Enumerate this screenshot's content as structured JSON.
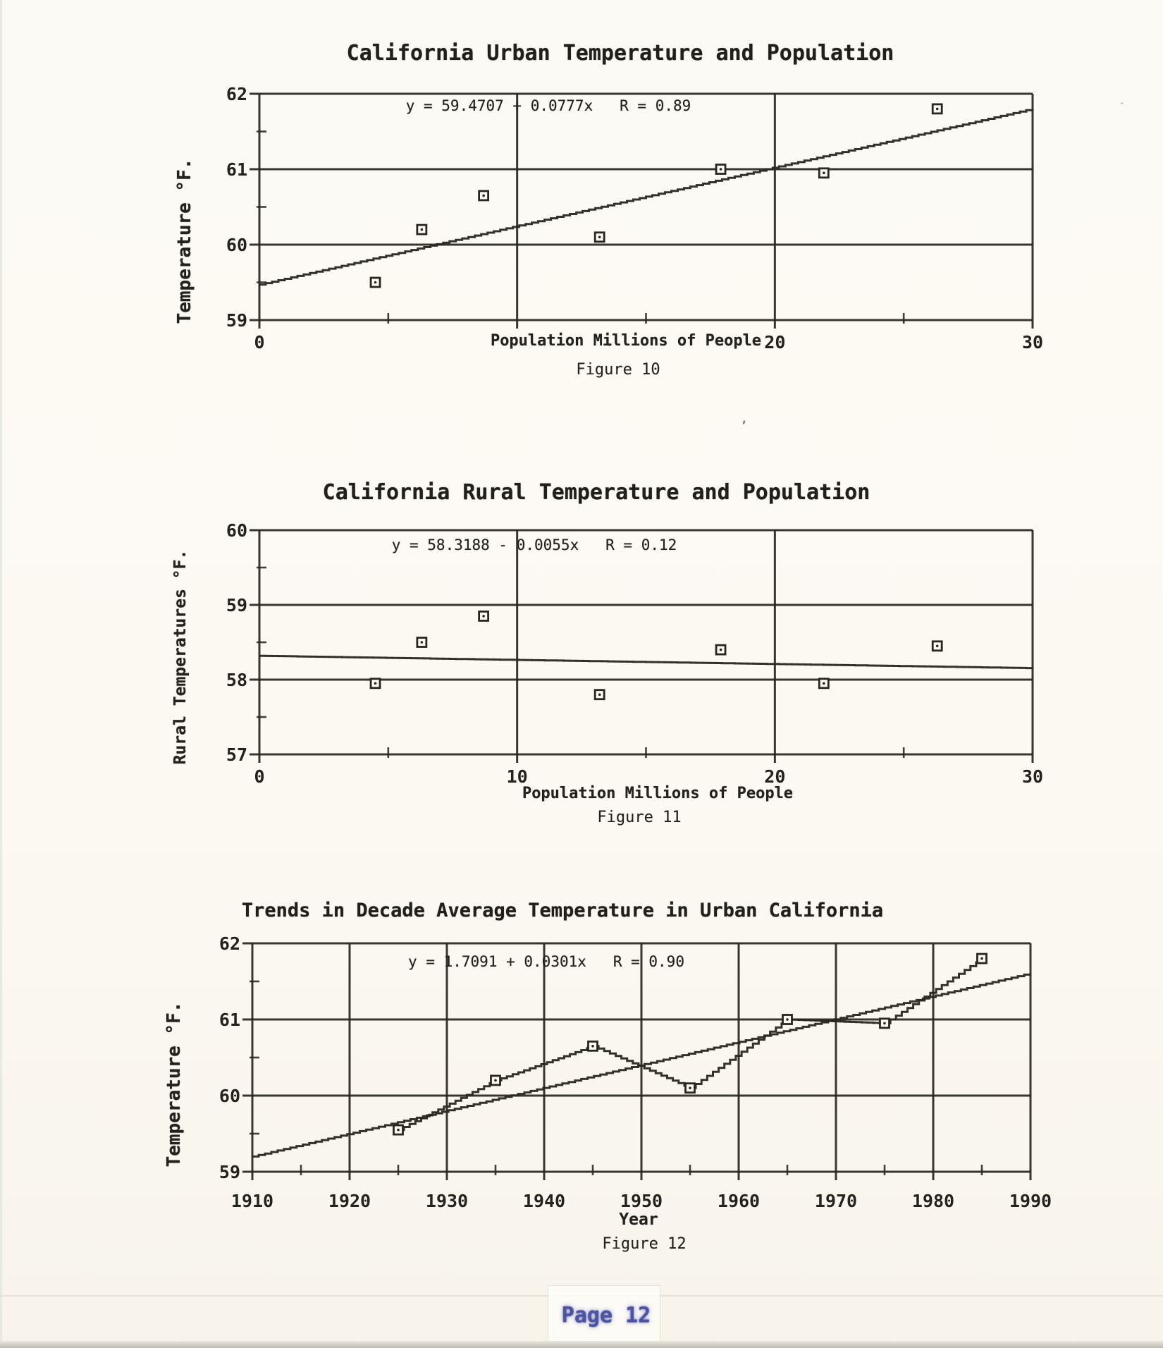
{
  "footer": {
    "page_label": "Page 12"
  },
  "chart_data": [
    {
      "type": "scatter",
      "title": "California Urban Temperature and Population",
      "equation": "y = 59.4707 + 0.0777x   R = 0.89",
      "fit": {
        "intercept": 59.4707,
        "slope": 0.0777,
        "r": 0.89
      },
      "xlabel": "Population Millions of People",
      "ylabel": "Temperature °F.",
      "figure_caption": "Figure 10",
      "xlim": [
        0,
        30
      ],
      "ylim": [
        59,
        62
      ],
      "grid": true,
      "legend": null,
      "x_gridlines": [
        0,
        10,
        20,
        30
      ],
      "y_gridlines": [
        59,
        60,
        61,
        62
      ],
      "x_minor_ticks": [
        5,
        15,
        25
      ],
      "y_minor_ticks": [
        59.5,
        60.5,
        61.5
      ],
      "x_ticks": [
        {
          "v": 0,
          "label": "0"
        },
        {
          "v": 20,
          "label": "20"
        },
        {
          "v": 30,
          "label": "30"
        }
      ],
      "y_ticks": [
        {
          "v": 62,
          "label": "62"
        },
        {
          "v": 61,
          "label": "61"
        },
        {
          "v": 60,
          "label": "60"
        },
        {
          "v": 59,
          "label": "59"
        }
      ],
      "points": [
        [
          4.5,
          59.5
        ],
        [
          6.3,
          60.2
        ],
        [
          8.7,
          60.65
        ],
        [
          13.2,
          60.1
        ],
        [
          17.9,
          61.0
        ],
        [
          21.9,
          60.95
        ],
        [
          26.3,
          61.8
        ]
      ],
      "connect": false
    },
    {
      "type": "scatter",
      "title": "California Rural Temperature and Population",
      "equation": "y = 58.3188 - 0.0055x   R = 0.12",
      "fit": {
        "intercept": 58.3188,
        "slope": -0.0055,
        "r": 0.12
      },
      "xlabel": "Population Millions of People",
      "ylabel": "Rural Temperatures °F.",
      "figure_caption": "Figure 11",
      "xlim": [
        0,
        30
      ],
      "ylim": [
        57,
        60
      ],
      "grid": true,
      "legend": null,
      "x_gridlines": [
        0,
        10,
        20,
        30
      ],
      "y_gridlines": [
        57,
        58,
        59,
        60
      ],
      "x_minor_ticks": [
        5,
        15,
        25
      ],
      "y_minor_ticks": [
        57.5,
        58.5,
        59.5
      ],
      "x_ticks": [
        {
          "v": 0,
          "label": "0"
        },
        {
          "v": 10,
          "label": "10"
        },
        {
          "v": 20,
          "label": "20"
        },
        {
          "v": 30,
          "label": "30"
        }
      ],
      "y_ticks": [
        {
          "v": 60,
          "label": "60"
        },
        {
          "v": 59,
          "label": "59"
        },
        {
          "v": 58,
          "label": "58"
        },
        {
          "v": 57,
          "label": "57"
        }
      ],
      "points": [
        [
          4.5,
          57.95
        ],
        [
          6.3,
          58.5
        ],
        [
          8.7,
          58.85
        ],
        [
          13.2,
          57.8
        ],
        [
          17.9,
          58.4
        ],
        [
          21.9,
          57.95
        ],
        [
          26.3,
          58.45
        ]
      ],
      "connect": false
    },
    {
      "type": "line",
      "title": "Trends in Decade Average Temperature in Urban California",
      "equation": "y = 1.7091 + 0.0301x   R = 0.90",
      "fit": {
        "intercept": 1.7091,
        "slope": 0.0301,
        "r": 0.9
      },
      "xlabel": "Year",
      "ylabel": "Temperature °F.",
      "figure_caption": "Figure 12",
      "xlim": [
        1910,
        1990
      ],
      "ylim": [
        59,
        62
      ],
      "grid": true,
      "legend": null,
      "x_gridlines": [
        1910,
        1920,
        1930,
        1940,
        1950,
        1960,
        1970,
        1980,
        1990
      ],
      "y_gridlines": [
        59,
        60,
        61,
        62
      ],
      "x_minor_ticks": [
        1915,
        1925,
        1935,
        1945,
        1955,
        1965,
        1975,
        1985
      ],
      "y_minor_ticks": [
        59.5,
        60.5,
        61.5
      ],
      "x_ticks": [
        {
          "v": 1910,
          "label": "1910"
        },
        {
          "v": 1920,
          "label": "1920"
        },
        {
          "v": 1930,
          "label": "1930"
        },
        {
          "v": 1940,
          "label": "1940"
        },
        {
          "v": 1950,
          "label": "1950"
        },
        {
          "v": 1960,
          "label": "1960"
        },
        {
          "v": 1970,
          "label": "1970"
        },
        {
          "v": 1980,
          "label": "1980"
        },
        {
          "v": 1990,
          "label": "1990"
        }
      ],
      "y_ticks": [
        {
          "v": 62,
          "label": "62"
        },
        {
          "v": 61,
          "label": "61"
        },
        {
          "v": 60,
          "label": "60"
        },
        {
          "v": 59,
          "label": "59"
        }
      ],
      "points": [
        [
          1925,
          59.55
        ],
        [
          1935,
          60.2
        ],
        [
          1945,
          60.65
        ],
        [
          1955,
          60.1
        ],
        [
          1965,
          61.0
        ],
        [
          1975,
          60.95
        ],
        [
          1985,
          61.8
        ]
      ],
      "connect": true
    }
  ]
}
